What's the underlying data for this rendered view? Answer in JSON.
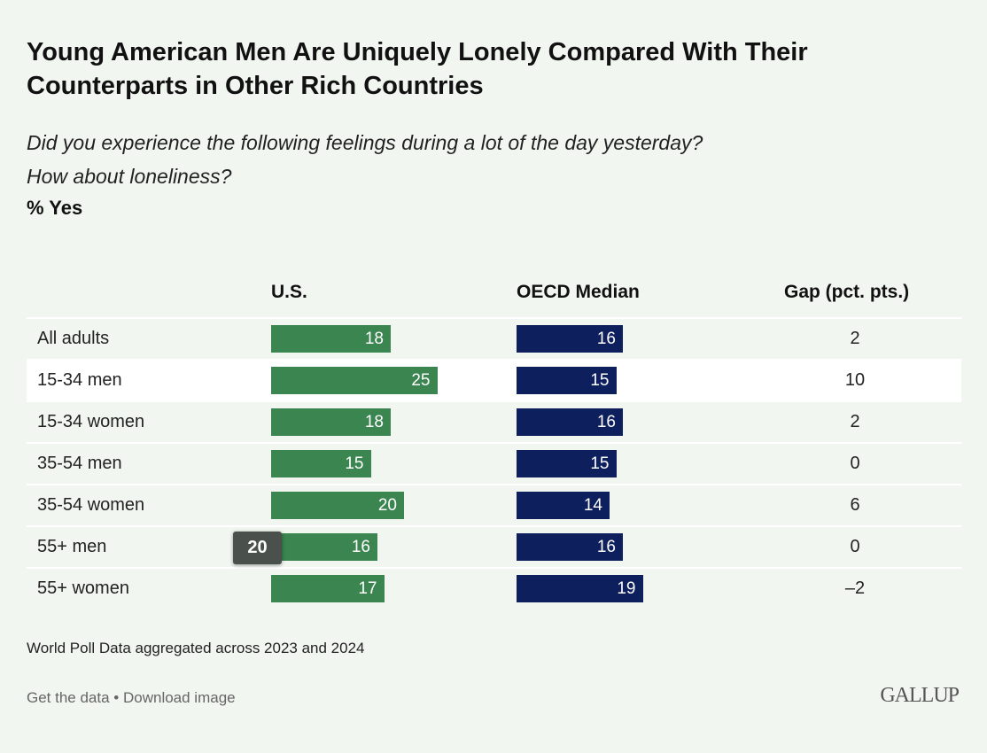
{
  "title": "Young American Men Are Uniquely Lonely Compared With Their Counterparts in Other Rich Countries",
  "subtitle1": "Did you experience the following feelings during a lot of the day yesterday?",
  "subtitle2": "How about loneliness?",
  "unit": "% Yes",
  "note": "World Poll Data aggregated across 2023 and 2024",
  "links": {
    "get_data": "Get the data",
    "sep": " • ",
    "download": "Download image"
  },
  "logo": "GALLUP",
  "tooltip": "20",
  "colors": {
    "us": "#3b8550",
    "oecd": "#0e1f5e"
  },
  "chart_data": {
    "type": "table",
    "columns": [
      "U.S.",
      "OECD Median",
      "Gap (pct. pts.)"
    ],
    "categories": [
      "All adults",
      "15-34 men",
      "15-34 women",
      "35-54 men",
      "35-54 women",
      "55+ men",
      "55+ women"
    ],
    "series": [
      {
        "name": "U.S.",
        "values": [
          18,
          25,
          18,
          15,
          20,
          16,
          17
        ]
      },
      {
        "name": "OECD Median",
        "values": [
          16,
          15,
          16,
          15,
          14,
          16,
          19
        ]
      }
    ],
    "gap": [
      "2",
      "10",
      "2",
      "0",
      "6",
      "0",
      "–2"
    ]
  }
}
